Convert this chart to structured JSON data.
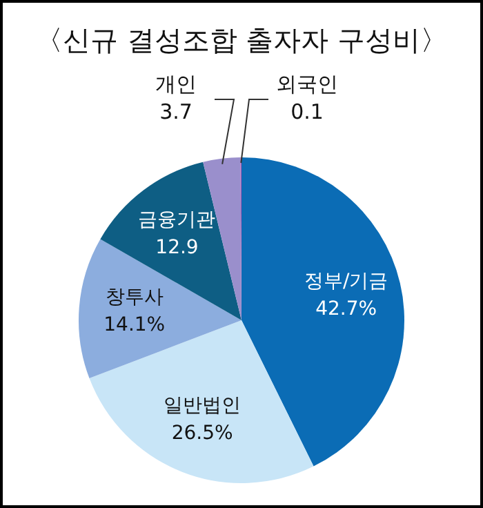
{
  "chart_data": {
    "type": "pie",
    "title": "〈신규 결성조합 출자자 구성비〉",
    "categories": [
      "정부/기금",
      "일반법인",
      "창투사",
      "금융기관",
      "개인",
      "외국인"
    ],
    "values": [
      42.7,
      26.5,
      14.1,
      12.9,
      3.7,
      0.1
    ],
    "colors": [
      "#0b6cb5",
      "#c8e5f7",
      "#8cadde",
      "#0e5e84",
      "#9a8fcc",
      "#b05cb4"
    ],
    "value_labels": [
      "42.7%",
      "26.5%",
      "14.1%",
      "12.9",
      "3.7",
      "0.1"
    ],
    "legend": false
  }
}
